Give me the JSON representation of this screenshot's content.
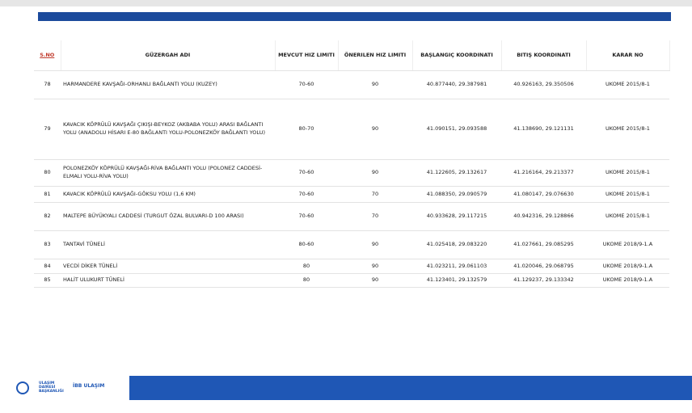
{
  "table": {
    "headers": [
      "S.No",
      "GÜZERGAH ADI",
      "Mevcut Hız Limiti",
      "Önerilen Hız Limiti",
      "Başlangıç Koordinatı",
      "Bitiş Koordinatı",
      "Karar No"
    ],
    "rows": [
      [
        "78",
        "HARMANDERE KAVŞAĞI-ORHANLI BAĞLANTI YOLU (KUZEY)",
        "70-60",
        "90",
        "40.877440, 29.387981",
        "40.926163, 29.350506",
        "UKOME 2015/8-1"
      ],
      [
        "79",
        "KAVACIK KÖPRÜLÜ KAVŞAĞI ÇIKIŞI-BEYKOZ (AKBABA YOLU) ARASI BAĞLANTI YOLU (ANADOLU HİSARI E-80 BAĞLANTI YOLU-POLONEZKÖY BAĞLANTI YOLU)",
        "80-70",
        "90",
        "41.090151, 29.093588",
        "41.138690, 29.121131",
        "UKOME 2015/8-1"
      ],
      [
        "80",
        "POLONEZKÖY KÖPRÜLÜ KAVŞAĞI-RİVA BAĞLANTI YOLU (POLONEZ CADDESİ-ELMALI YOLU-RİVA YOLU)",
        "70-60",
        "90",
        "41.122605, 29.132617",
        "41.216164, 29.213377",
        "UKOME 2015/8-1"
      ],
      [
        "81",
        "KAVACIK KÖPRÜLÜ KAVŞAĞI-GÖKSU YOLU (1,6 KM)",
        "70-60",
        "70",
        "41.088350, 29.090579",
        "41.080147, 29.076630",
        "UKOME 2015/8-1"
      ],
      [
        "82",
        "MALTEPE BÜYÜKYALI CADDESİ (TURGUT ÖZAL BULVARI-D 100 ARASI)",
        "70-60",
        "70",
        "40.933628, 29.117215",
        "40.942316, 29.128866",
        "UKOME 2015/8-1"
      ],
      [
        "83",
        "TANTAVİ TÜNELİ",
        "80-60",
        "90",
        "41.025418, 29.083220",
        "41.027661, 29.085295",
        "UKOME 2018/9-1.A"
      ],
      [
        "84",
        "VECDİ DİKER TÜNELİ",
        "80",
        "90",
        "41.023211, 29.061103",
        "41.020046, 29.068795",
        "UKOME 2018/9-1.A"
      ],
      [
        "85",
        "HALİT ULUKURT TÜNELİ",
        "80",
        "90",
        "41.123401, 29.132579",
        "41.129237, 29.133342",
        "UKOME 2018/9-1.A"
      ]
    ]
  },
  "footer": {
    "department": "ULAŞIM DAİRESİ BAŞKANLIĞI",
    "brand": "İBB ULAŞIM"
  }
}
